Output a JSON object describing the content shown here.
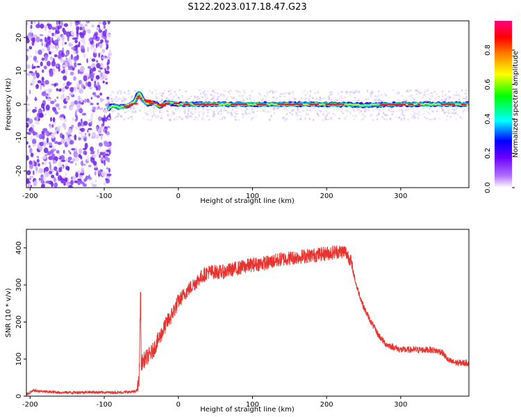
{
  "title": "S122.2023.017.18.47.G23",
  "colors": {
    "snr_line": "#e8322e",
    "axis": "#000000",
    "background": "#ffffff"
  },
  "chart_data": [
    {
      "type": "heatmap",
      "xlabel": "Height of straight line (km)",
      "ylabel": "Frequency (Hz)",
      "xlim": [
        -205,
        392
      ],
      "ylim": [
        -25,
        25
      ],
      "x_ticks": [
        "-200",
        "-100",
        "0",
        "100",
        "200",
        "300"
      ],
      "y_ticks": [
        "20",
        "10",
        "0",
        "-10",
        "-20"
      ],
      "x_tick_values": [
        -200,
        -100,
        0,
        100,
        200,
        300
      ],
      "y_tick_values": [
        20,
        10,
        0,
        -10,
        -20
      ],
      "noise_region": [
        -205,
        -92
      ],
      "signal_start": -95,
      "ridge": [
        {
          "x": -95,
          "f": -1.5
        },
        {
          "x": -90,
          "f": -0.5
        },
        {
          "x": -80,
          "f": -1.0
        },
        {
          "x": -70,
          "f": -0.5
        },
        {
          "x": -60,
          "f": 0.5
        },
        {
          "x": -53,
          "f": 3.5
        },
        {
          "x": -48,
          "f": 1.5
        },
        {
          "x": -42,
          "f": 0.0
        },
        {
          "x": -35,
          "f": 0.5
        },
        {
          "x": -25,
          "f": -0.5
        },
        {
          "x": -15,
          "f": 0.5
        },
        {
          "x": 0,
          "f": 0.0
        },
        {
          "x": 50,
          "f": 0.0
        },
        {
          "x": 100,
          "f": 0.0
        },
        {
          "x": 150,
          "f": 0.0
        },
        {
          "x": 200,
          "f": 0.0
        },
        {
          "x": 250,
          "f": -0.3
        },
        {
          "x": 300,
          "f": 0.0
        },
        {
          "x": 392,
          "f": 0.0
        }
      ],
      "colorbar": {
        "label": "Normalized spectral amplitude",
        "ticks": [
          "0.0",
          "0.2",
          "0.4",
          "0.6",
          "0.8"
        ],
        "tick_values": [
          0.0,
          0.2,
          0.4,
          0.6,
          0.8
        ],
        "range": [
          0,
          0.97
        ],
        "colormap": [
          "#ffffff",
          "#8b00ff",
          "#0000ff",
          "#00ffff",
          "#00ff00",
          "#ffff00",
          "#ff7f00",
          "#ff0000",
          "#ff0080"
        ]
      }
    },
    {
      "type": "line",
      "xlabel": "Height of straight line (km)",
      "ylabel": "SNR (10 * v/v)",
      "xlim": [
        -205,
        392
      ],
      "ylim": [
        0,
        450
      ],
      "x_ticks": [
        "-200",
        "-100",
        "0",
        "100",
        "200",
        "300"
      ],
      "y_ticks": [
        "400",
        "300",
        "200",
        "100",
        "0"
      ],
      "x_tick_values": [
        -200,
        -100,
        0,
        100,
        200,
        300
      ],
      "y_tick_values": [
        400,
        300,
        200,
        100,
        0
      ],
      "series": [
        {
          "x": [
            -205,
            -195,
            -180,
            -160,
            -140,
            -120,
            -100,
            -80,
            -60,
            -56,
            -53,
            -51,
            -50,
            -45,
            -40,
            -35,
            -30,
            -25,
            -20,
            -15,
            -10,
            -5,
            0,
            10,
            20,
            30,
            40,
            50,
            60,
            80,
            100,
            120,
            140,
            160,
            180,
            200,
            215,
            225,
            232,
            240,
            250,
            260,
            270,
            280,
            300,
            320,
            340,
            355,
            365,
            375,
            392
          ],
          "y": [
            5,
            15,
            12,
            10,
            10,
            11,
            10,
            10,
            12,
            15,
            40,
            280,
            90,
            100,
            110,
            120,
            140,
            160,
            180,
            200,
            215,
            235,
            255,
            280,
            300,
            320,
            335,
            335,
            335,
            345,
            355,
            360,
            370,
            375,
            380,
            385,
            390,
            390,
            370,
            300,
            240,
            200,
            165,
            140,
            125,
            125,
            125,
            120,
            95,
            90,
            90
          ]
        }
      ]
    }
  ]
}
